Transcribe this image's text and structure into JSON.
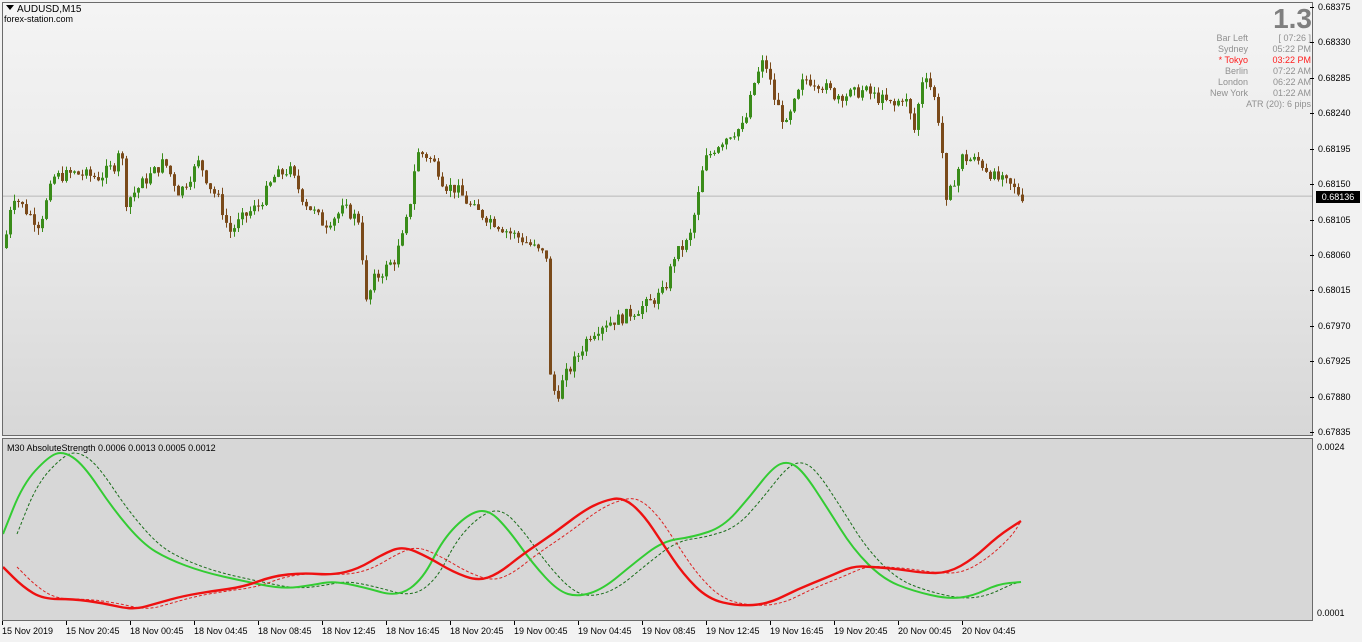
{
  "window": {
    "symbol_title": "AUDUSD,M15",
    "watermark": "forex-station.com"
  },
  "colors": {
    "bull_candle": "#3a8c1a",
    "bear_candle": "#7a4a1a",
    "strength_green": "#33cc33",
    "strength_red": "#ee1111",
    "current_price_bg": "#000000"
  },
  "info_panel": {
    "big_value": "1.3",
    "rows": [
      {
        "label": "Bar Left",
        "value": "[ 07:26 ]",
        "highlight": false
      },
      {
        "label": "Sydney",
        "value": "05:22 PM",
        "highlight": false
      },
      {
        "label": "* Tokyo",
        "value": "03:22 PM",
        "highlight": true
      },
      {
        "label": "Berlin",
        "value": "07:22 AM",
        "highlight": false
      },
      {
        "label": "London",
        "value": "06:22 AM",
        "highlight": false
      },
      {
        "label": "New York",
        "value": "01:22 AM",
        "highlight": false
      }
    ],
    "atr": "ATR (20): 6 pips"
  },
  "price_axis": {
    "labels": [
      "0.68375",
      "0.68330",
      "0.68285",
      "0.68240",
      "0.68195",
      "0.68150",
      "0.68105",
      "0.68060",
      "0.68015",
      "0.67970",
      "0.67925",
      "0.67880",
      "0.67835"
    ],
    "range": [
      0.67835,
      0.68375
    ],
    "current_price": "0.68136"
  },
  "indicator": {
    "label": "M30 AbsoluteStrength 0.0006 0.0013 0.0005 0.0012",
    "axis_labels": [
      "0.0024",
      "0.0001"
    ]
  },
  "time_axis": {
    "labels": [
      "15 Nov 2019",
      "15 Nov 20:45",
      "18 Nov 00:45",
      "18 Nov 04:45",
      "18 Nov 08:45",
      "18 Nov 12:45",
      "18 Nov 16:45",
      "18 Nov 20:45",
      "19 Nov 00:45",
      "19 Nov 04:45",
      "19 Nov 08:45",
      "19 Nov 12:45",
      "19 Nov 16:45",
      "19 Nov 20:45",
      "20 Nov 00:45",
      "20 Nov 04:45"
    ]
  },
  "chart_data": {
    "type": "candlestick",
    "title": "AUDUSD,M15",
    "ylim": [
      0.67835,
      0.68375
    ],
    "close_path": [
      [
        0,
        0.6807
      ],
      [
        8,
        0.6814
      ],
      [
        20,
        0.6812
      ],
      [
        35,
        0.681
      ],
      [
        50,
        0.6816
      ],
      [
        70,
        0.68165
      ],
      [
        95,
        0.6816
      ],
      [
        110,
        0.68175
      ],
      [
        116,
        0.68205
      ],
      [
        122,
        0.6813
      ],
      [
        140,
        0.68155
      ],
      [
        160,
        0.6818
      ],
      [
        175,
        0.6814
      ],
      [
        195,
        0.6818
      ],
      [
        205,
        0.6815
      ],
      [
        215,
        0.6813
      ],
      [
        225,
        0.6809
      ],
      [
        240,
        0.6811
      ],
      [
        255,
        0.68125
      ],
      [
        270,
        0.6816
      ],
      [
        285,
        0.6817
      ],
      [
        300,
        0.6813
      ],
      [
        320,
        0.681
      ],
      [
        340,
        0.6812
      ],
      [
        355,
        0.68105
      ],
      [
        362,
        0.68
      ],
      [
        370,
        0.6803
      ],
      [
        390,
        0.68055
      ],
      [
        400,
        0.6809
      ],
      [
        406,
        0.6813
      ],
      [
        412,
        0.6819
      ],
      [
        420,
        0.6819
      ],
      [
        432,
        0.68175
      ],
      [
        440,
        0.6815
      ],
      [
        452,
        0.68145
      ],
      [
        468,
        0.6812
      ],
      [
        488,
        0.68105
      ],
      [
        505,
        0.6809
      ],
      [
        520,
        0.6808
      ],
      [
        535,
        0.68065
      ],
      [
        542,
        0.6806
      ],
      [
        545,
        0.6791
      ],
      [
        552,
        0.6788
      ],
      [
        560,
        0.67905
      ],
      [
        572,
        0.6793
      ],
      [
        585,
        0.6796
      ],
      [
        600,
        0.67975
      ],
      [
        615,
        0.6798
      ],
      [
        630,
        0.6799
      ],
      [
        645,
        0.68
      ],
      [
        660,
        0.68015
      ],
      [
        670,
        0.6806
      ],
      [
        685,
        0.6808
      ],
      [
        693,
        0.6813
      ],
      [
        700,
        0.6818
      ],
      [
        712,
        0.682
      ],
      [
        725,
        0.68215
      ],
      [
        740,
        0.68225
      ],
      [
        750,
        0.6828
      ],
      [
        760,
        0.6831
      ],
      [
        770,
        0.6826
      ],
      [
        782,
        0.68225
      ],
      [
        792,
        0.6826
      ],
      [
        800,
        0.68285
      ],
      [
        815,
        0.6828
      ],
      [
        830,
        0.68265
      ],
      [
        845,
        0.68265
      ],
      [
        860,
        0.6827
      ],
      [
        875,
        0.6826
      ],
      [
        890,
        0.6825
      ],
      [
        900,
        0.68265
      ],
      [
        910,
        0.6822
      ],
      [
        920,
        0.683
      ],
      [
        930,
        0.6826
      ],
      [
        937,
        0.68215
      ],
      [
        941,
        0.6812
      ],
      [
        948,
        0.6815
      ],
      [
        958,
        0.68185
      ],
      [
        975,
        0.6818
      ],
      [
        990,
        0.6816
      ],
      [
        1005,
        0.6815
      ],
      [
        1018,
        0.68136
      ]
    ]
  }
}
